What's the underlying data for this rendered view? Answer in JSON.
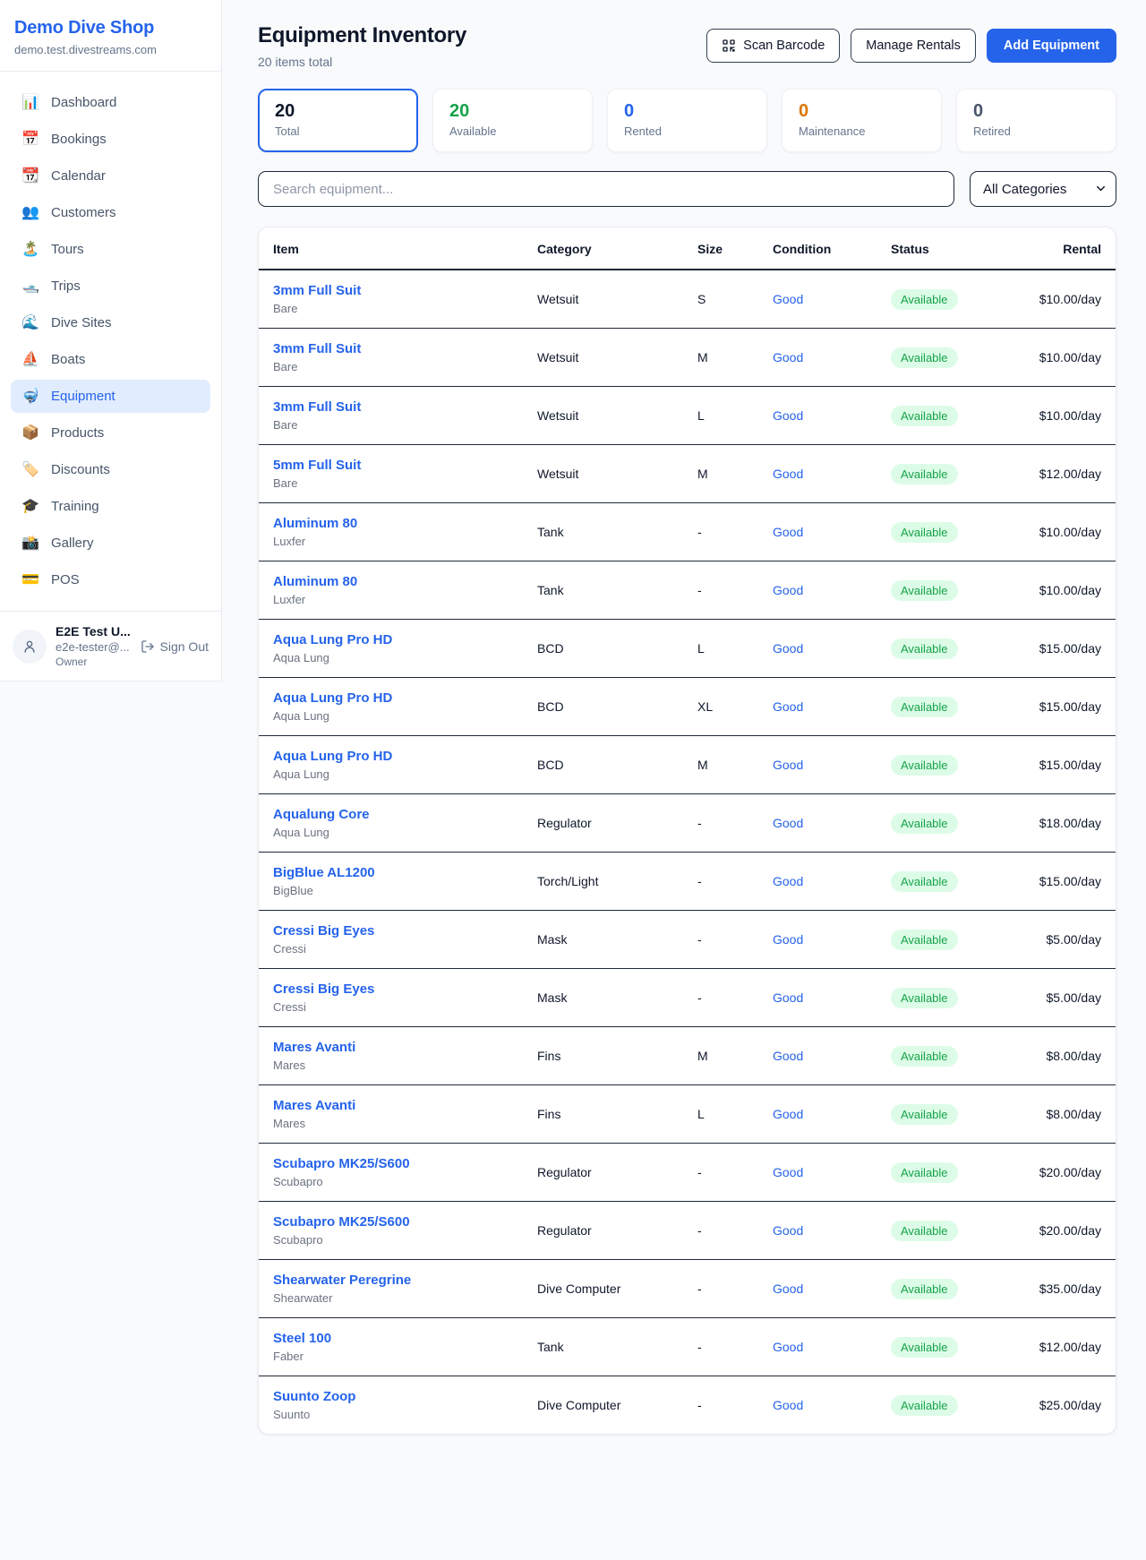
{
  "brand": {
    "name": "Demo Dive Shop",
    "domain": "demo.test.divestreams.com"
  },
  "sidebar": {
    "items": [
      {
        "id": "dashboard",
        "icon_name": "bar-chart-icon",
        "icon": "📊",
        "label": "Dashboard",
        "active": false
      },
      {
        "id": "bookings",
        "icon_name": "tear-calendar-icon",
        "icon": "📅",
        "label": "Bookings",
        "active": false
      },
      {
        "id": "calendar",
        "icon_name": "calendar-icon",
        "icon": "📆",
        "label": "Calendar",
        "active": false
      },
      {
        "id": "customers",
        "icon_name": "users-icon",
        "icon": "👥",
        "label": "Customers",
        "active": false
      },
      {
        "id": "tours",
        "icon_name": "island-icon",
        "icon": "🏝️",
        "label": "Tours",
        "active": false
      },
      {
        "id": "trips",
        "icon_name": "motorboat-icon",
        "icon": "🛥️",
        "label": "Trips",
        "active": false
      },
      {
        "id": "dive-sites",
        "icon_name": "wave-icon",
        "icon": "🌊",
        "label": "Dive Sites",
        "active": false
      },
      {
        "id": "boats",
        "icon_name": "sailboat-icon",
        "icon": "⛵",
        "label": "Boats",
        "active": false
      },
      {
        "id": "equipment",
        "icon_name": "diving-mask-icon",
        "icon": "🤿",
        "label": "Equipment",
        "active": true
      },
      {
        "id": "products",
        "icon_name": "package-icon",
        "icon": "📦",
        "label": "Products",
        "active": false
      },
      {
        "id": "discounts",
        "icon_name": "tag-icon",
        "icon": "🏷️",
        "label": "Discounts",
        "active": false
      },
      {
        "id": "training",
        "icon_name": "graduation-cap-icon",
        "icon": "🎓",
        "label": "Training",
        "active": false
      },
      {
        "id": "gallery",
        "icon_name": "camera-icon",
        "icon": "📸",
        "label": "Gallery",
        "active": false
      },
      {
        "id": "pos",
        "icon_name": "credit-card-icon",
        "icon": "💳",
        "label": "POS",
        "active": false
      }
    ]
  },
  "user": {
    "name": "E2E Test U...",
    "email": "e2e-tester@...",
    "role": "Owner",
    "sign_out_label": "Sign Out"
  },
  "header": {
    "title": "Equipment Inventory",
    "subtitle": "20 items total",
    "scan_label": "Scan Barcode",
    "manage_label": "Manage Rentals",
    "add_label": "Add Equipment"
  },
  "stats": [
    {
      "value": "20",
      "label": "Total",
      "color": "#0f172a",
      "active": true
    },
    {
      "value": "20",
      "label": "Available",
      "color": "#16a34a",
      "active": false
    },
    {
      "value": "0",
      "label": "Rented",
      "color": "#2563eb",
      "active": false
    },
    {
      "value": "0",
      "label": "Maintenance",
      "color": "#d97706",
      "active": false
    },
    {
      "value": "0",
      "label": "Retired",
      "color": "#475569",
      "active": false
    }
  ],
  "filters": {
    "search_placeholder": "Search equipment...",
    "category_selected": "All Categories"
  },
  "table": {
    "columns": [
      "Item",
      "Category",
      "Size",
      "Condition",
      "Status",
      "Rental"
    ],
    "rows": [
      {
        "item": "3mm Full Suit",
        "brand": "Bare",
        "category": "Wetsuit",
        "size": "S",
        "condition": "Good",
        "status": "Available",
        "rental": "$10.00/day"
      },
      {
        "item": "3mm Full Suit",
        "brand": "Bare",
        "category": "Wetsuit",
        "size": "M",
        "condition": "Good",
        "status": "Available",
        "rental": "$10.00/day"
      },
      {
        "item": "3mm Full Suit",
        "brand": "Bare",
        "category": "Wetsuit",
        "size": "L",
        "condition": "Good",
        "status": "Available",
        "rental": "$10.00/day"
      },
      {
        "item": "5mm Full Suit",
        "brand": "Bare",
        "category": "Wetsuit",
        "size": "M",
        "condition": "Good",
        "status": "Available",
        "rental": "$12.00/day"
      },
      {
        "item": "Aluminum 80",
        "brand": "Luxfer",
        "category": "Tank",
        "size": "-",
        "condition": "Good",
        "status": "Available",
        "rental": "$10.00/day"
      },
      {
        "item": "Aluminum 80",
        "brand": "Luxfer",
        "category": "Tank",
        "size": "-",
        "condition": "Good",
        "status": "Available",
        "rental": "$10.00/day"
      },
      {
        "item": "Aqua Lung Pro HD",
        "brand": "Aqua Lung",
        "category": "BCD",
        "size": "L",
        "condition": "Good",
        "status": "Available",
        "rental": "$15.00/day"
      },
      {
        "item": "Aqua Lung Pro HD",
        "brand": "Aqua Lung",
        "category": "BCD",
        "size": "XL",
        "condition": "Good",
        "status": "Available",
        "rental": "$15.00/day"
      },
      {
        "item": "Aqua Lung Pro HD",
        "brand": "Aqua Lung",
        "category": "BCD",
        "size": "M",
        "condition": "Good",
        "status": "Available",
        "rental": "$15.00/day"
      },
      {
        "item": "Aqualung Core",
        "brand": "Aqua Lung",
        "category": "Regulator",
        "size": "-",
        "condition": "Good",
        "status": "Available",
        "rental": "$18.00/day"
      },
      {
        "item": "BigBlue AL1200",
        "brand": "BigBlue",
        "category": "Torch/Light",
        "size": "-",
        "condition": "Good",
        "status": "Available",
        "rental": "$15.00/day"
      },
      {
        "item": "Cressi Big Eyes",
        "brand": "Cressi",
        "category": "Mask",
        "size": "-",
        "condition": "Good",
        "status": "Available",
        "rental": "$5.00/day"
      },
      {
        "item": "Cressi Big Eyes",
        "brand": "Cressi",
        "category": "Mask",
        "size": "-",
        "condition": "Good",
        "status": "Available",
        "rental": "$5.00/day"
      },
      {
        "item": "Mares Avanti",
        "brand": "Mares",
        "category": "Fins",
        "size": "M",
        "condition": "Good",
        "status": "Available",
        "rental": "$8.00/day"
      },
      {
        "item": "Mares Avanti",
        "brand": "Mares",
        "category": "Fins",
        "size": "L",
        "condition": "Good",
        "status": "Available",
        "rental": "$8.00/day"
      },
      {
        "item": "Scubapro MK25/S600",
        "brand": "Scubapro",
        "category": "Regulator",
        "size": "-",
        "condition": "Good",
        "status": "Available",
        "rental": "$20.00/day"
      },
      {
        "item": "Scubapro MK25/S600",
        "brand": "Scubapro",
        "category": "Regulator",
        "size": "-",
        "condition": "Good",
        "status": "Available",
        "rental": "$20.00/day"
      },
      {
        "item": "Shearwater Peregrine",
        "brand": "Shearwater",
        "category": "Dive Computer",
        "size": "-",
        "condition": "Good",
        "status": "Available",
        "rental": "$35.00/day"
      },
      {
        "item": "Steel 100",
        "brand": "Faber",
        "category": "Tank",
        "size": "-",
        "condition": "Good",
        "status": "Available",
        "rental": "$12.00/day"
      },
      {
        "item": "Suunto Zoop",
        "brand": "Suunto",
        "category": "Dive Computer",
        "size": "-",
        "condition": "Good",
        "status": "Available",
        "rental": "$25.00/day"
      }
    ]
  },
  "colors": {
    "accent_blue": "#2563eb",
    "available_green": "#16a34a",
    "badge_bg": "#dcfce7",
    "maintenance_orange": "#d97706",
    "muted_gray": "#64748b"
  }
}
